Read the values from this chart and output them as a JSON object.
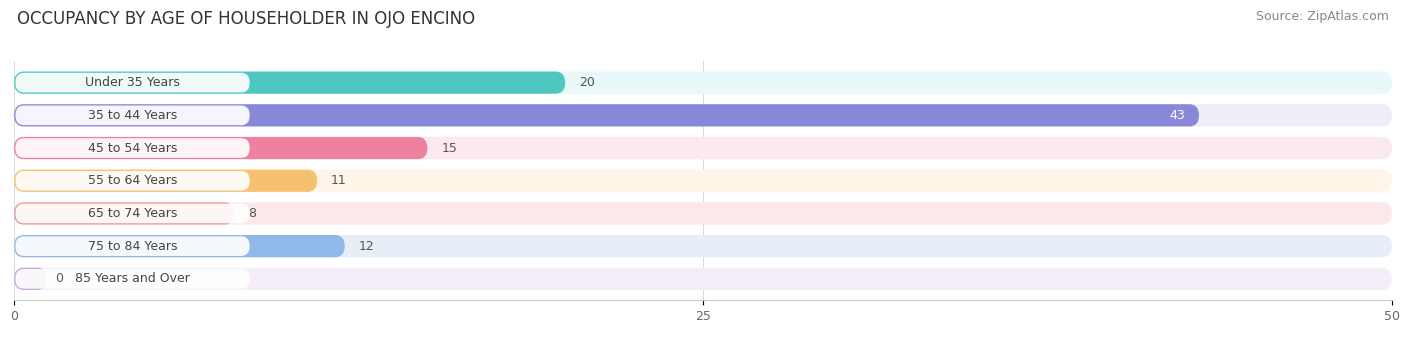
{
  "title": "OCCUPANCY BY AGE OF HOUSEHOLDER IN OJO ENCINO",
  "source": "Source: ZipAtlas.com",
  "categories": [
    "Under 35 Years",
    "35 to 44 Years",
    "45 to 54 Years",
    "55 to 64 Years",
    "65 to 74 Years",
    "75 to 84 Years",
    "85 Years and Over"
  ],
  "values": [
    20,
    43,
    15,
    11,
    8,
    12,
    0
  ],
  "bar_colors": [
    "#4dc8c0",
    "#8888d8",
    "#f080a0",
    "#f5c070",
    "#e89898",
    "#90b8e8",
    "#c8a8d8"
  ],
  "bar_bg_colors": [
    "#e8f8f8",
    "#eeeef8",
    "#fce8f0",
    "#fef5e8",
    "#fce8e8",
    "#e8eef8",
    "#f5eef8"
  ],
  "xlim": [
    0,
    50
  ],
  "xticks": [
    0,
    25,
    50
  ],
  "title_fontsize": 12,
  "source_fontsize": 9,
  "label_fontsize": 9,
  "value_fontsize": 9,
  "background_color": "#ffffff",
  "label_box_color": "#ffffff",
  "grid_color": "#d8d8d8"
}
